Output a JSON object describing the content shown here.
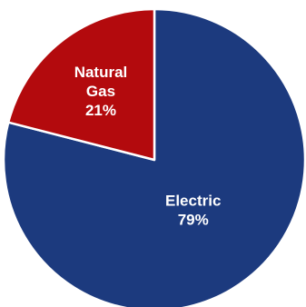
{
  "chart_data": {
    "type": "pie",
    "title": "",
    "slices": [
      {
        "label": "Electric",
        "value": 79,
        "value_label": "79%",
        "color": "#1c3a7e"
      },
      {
        "label": "Natural Gas",
        "value": 21,
        "value_label": "21%",
        "color": "#b30a0d"
      }
    ],
    "legend": "none",
    "start_angle_deg": -90,
    "direction": "clockwise"
  }
}
